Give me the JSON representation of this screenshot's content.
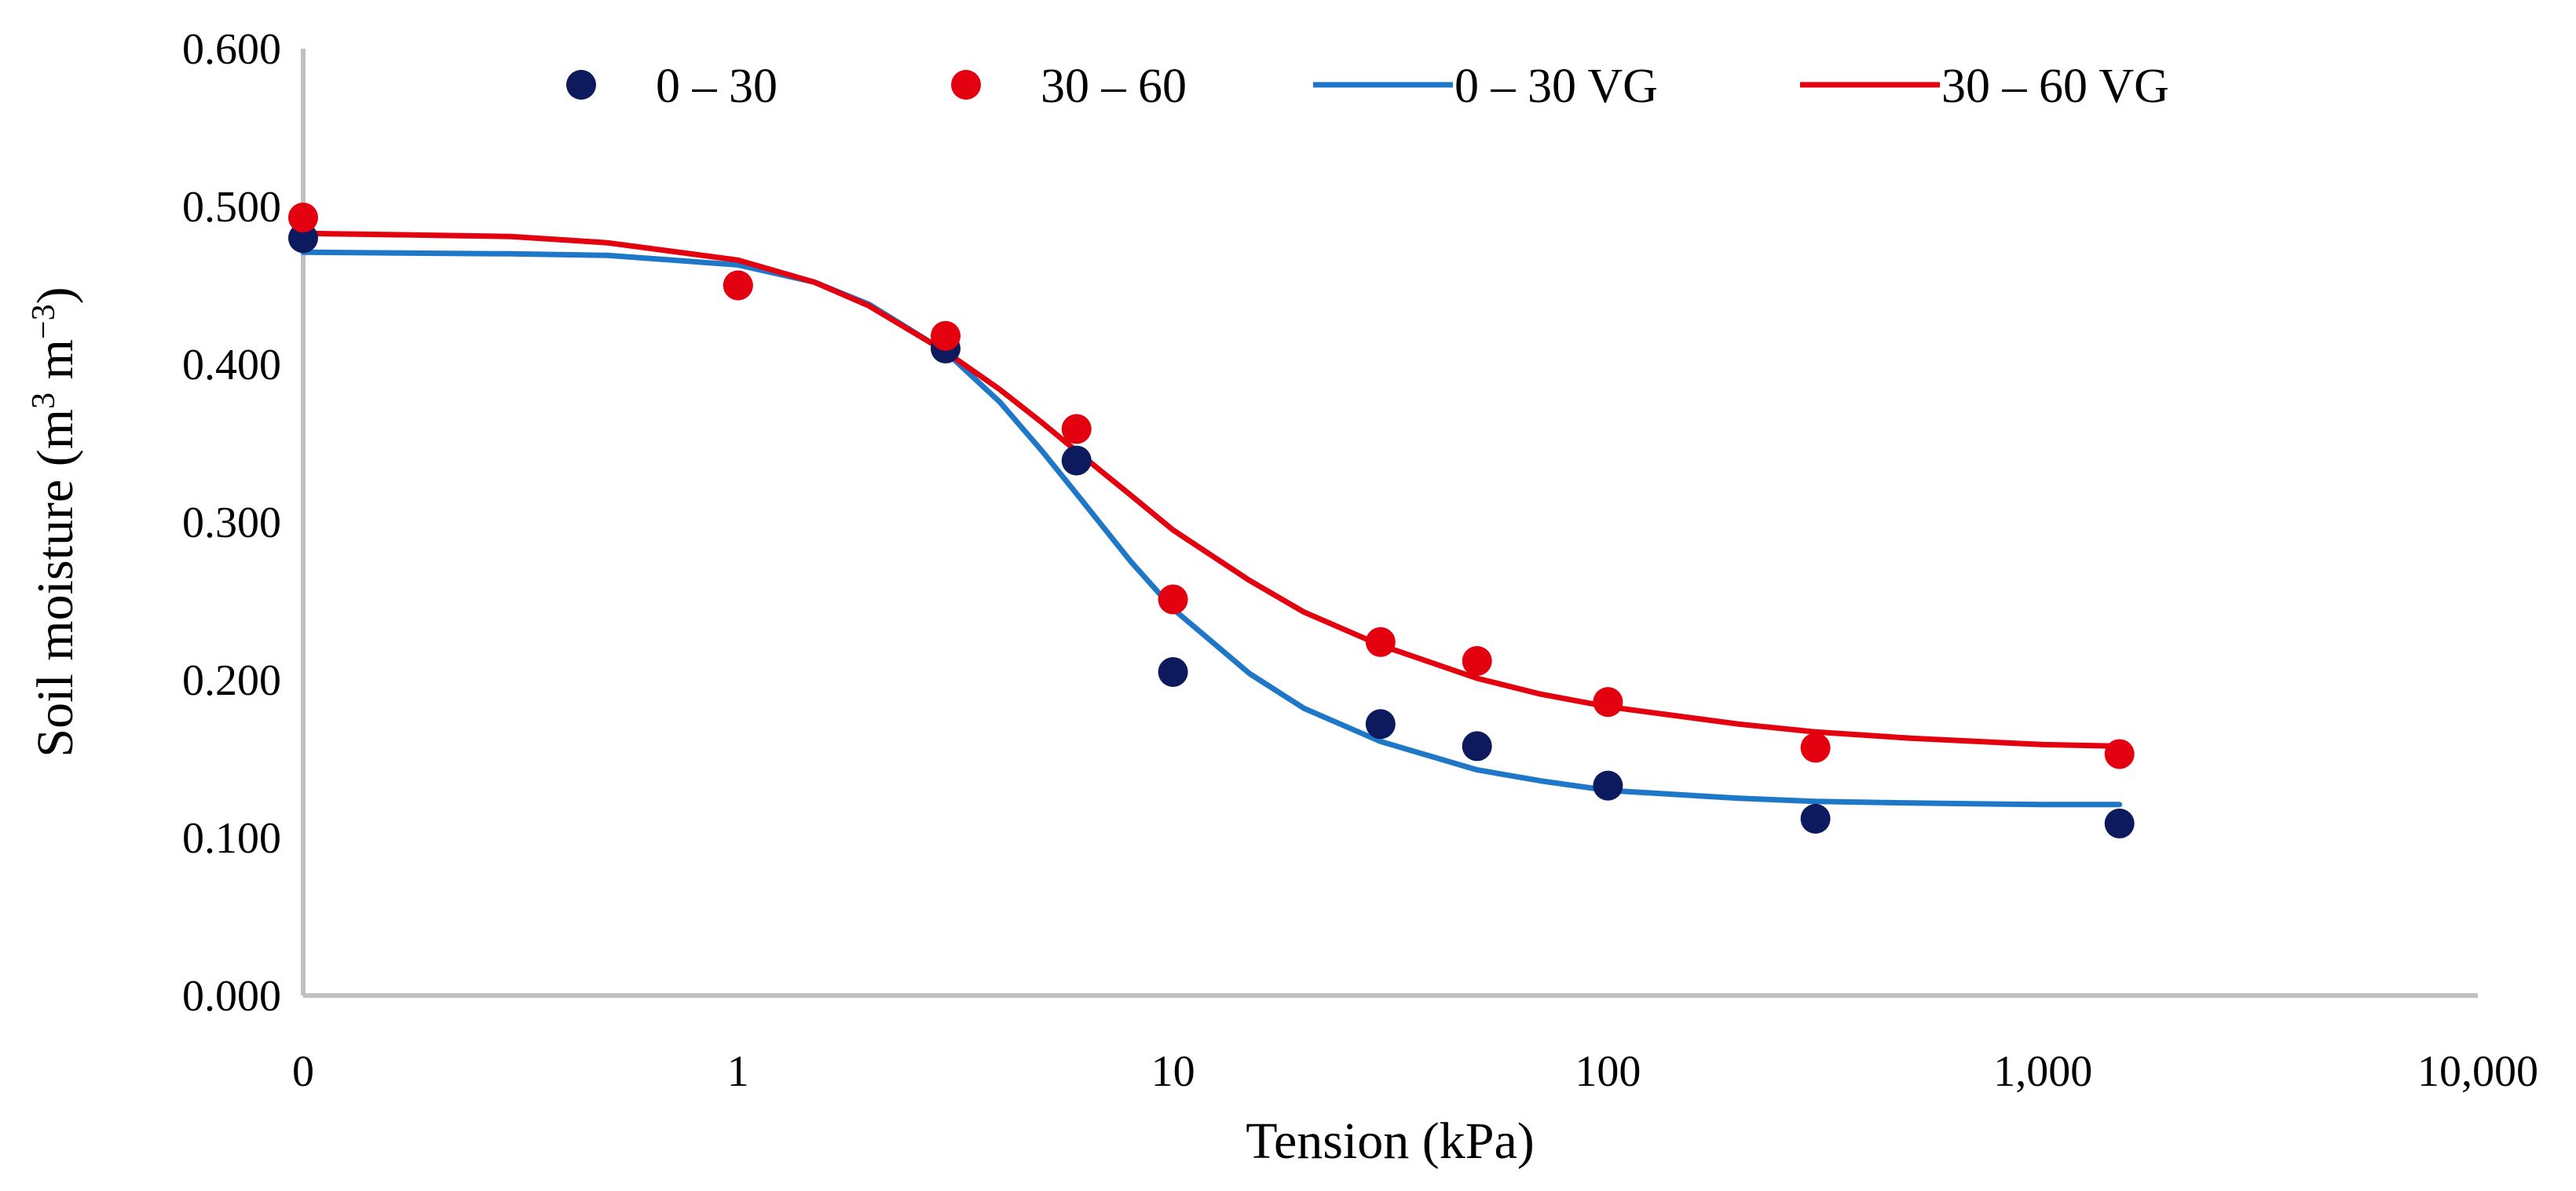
{
  "chart_data": {
    "type": "scatter",
    "title": "",
    "xlabel": "Tension (kPa)",
    "ylabel": {
      "main": "Soil moisture (m",
      "sup1": "3",
      "mid": " m",
      "sup2": "−3",
      "end": ")"
    },
    "x_scale": "log",
    "x_ticks": [
      {
        "label": "0",
        "value": 0.1
      },
      {
        "label": "1",
        "value": 1
      },
      {
        "label": "10",
        "value": 10
      },
      {
        "label": "100",
        "value": 100
      },
      {
        "label": "1,000",
        "value": 1000
      },
      {
        "label": "10,000",
        "value": 10000
      }
    ],
    "xlim": [
      0.1,
      10000
    ],
    "ylim": [
      0,
      0.6
    ],
    "y_ticks": [
      "0.000",
      "0.100",
      "0.200",
      "0.300",
      "0.400",
      "0.500",
      "0.600"
    ],
    "grid": false,
    "legend_position": "top",
    "points": [
      {
        "name": "0 – 30",
        "color": "#0d1a5e",
        "x": [
          0.1,
          1,
          3,
          6,
          10,
          30,
          50,
          100,
          300,
          1500
        ],
        "y": [
          0.48,
          0.45,
          0.41,
          0.339,
          0.205,
          0.172,
          0.158,
          0.133,
          0.112,
          0.109
        ]
      },
      {
        "name": "30 – 60",
        "color": "#e3000f",
        "x": [
          0.1,
          1,
          3,
          6,
          10,
          30,
          50,
          100,
          300,
          1500
        ],
        "y": [
          0.493,
          0.45,
          0.418,
          0.359,
          0.251,
          0.224,
          0.212,
          0.186,
          0.157,
          0.153
        ]
      }
    ],
    "curves": [
      {
        "name": "0 – 30 VG",
        "color": "#1f77c8",
        "x": [
          0.1,
          0.3,
          0.5,
          1,
          1.5,
          2,
          3,
          4,
          5,
          6,
          8,
          10,
          15,
          20,
          30,
          50,
          70,
          100,
          200,
          300,
          500,
          1000,
          1500
        ],
        "y": [
          0.471,
          0.47,
          0.469,
          0.463,
          0.452,
          0.438,
          0.408,
          0.376,
          0.345,
          0.318,
          0.275,
          0.245,
          0.204,
          0.182,
          0.161,
          0.143,
          0.136,
          0.13,
          0.125,
          0.123,
          0.122,
          0.121,
          0.121
        ]
      },
      {
        "name": "30 – 60 VG",
        "color": "#e3000f",
        "x": [
          0.1,
          0.3,
          0.5,
          1,
          1.5,
          2,
          3,
          4,
          5,
          6,
          8,
          10,
          15,
          20,
          30,
          50,
          70,
          100,
          200,
          300,
          500,
          1000,
          1500
        ],
        "y": [
          0.483,
          0.481,
          0.477,
          0.466,
          0.452,
          0.437,
          0.408,
          0.384,
          0.363,
          0.345,
          0.317,
          0.295,
          0.263,
          0.243,
          0.222,
          0.201,
          0.191,
          0.183,
          0.172,
          0.167,
          0.163,
          0.159,
          0.158
        ]
      }
    ]
  }
}
